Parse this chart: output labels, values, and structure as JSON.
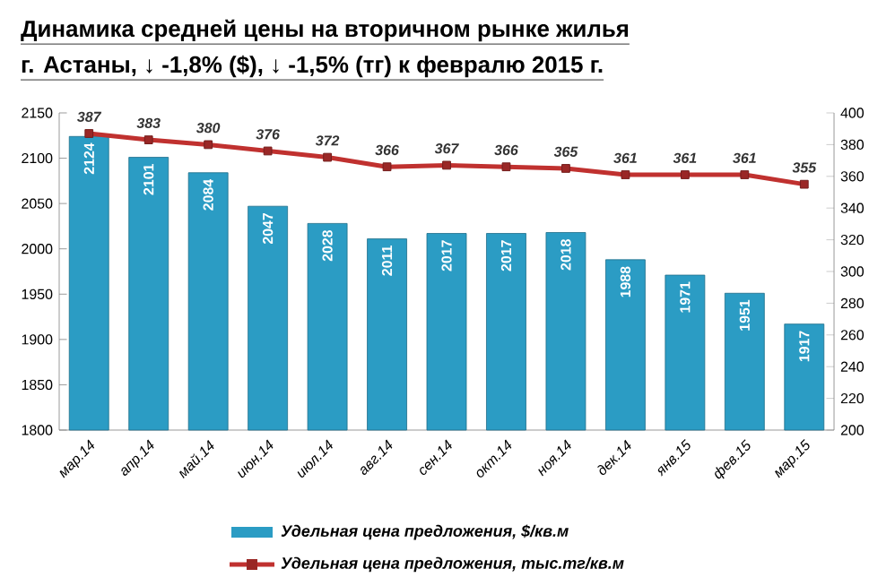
{
  "chart_data": {
    "type": "bar",
    "title": "Динамика средней  цены на вторичном рынке жилья",
    "subtitle": "г. Астаны, ↓ -1,8% ($), ↓ -1,5% (тг) к февралю 2015 г.",
    "categories": [
      "мар.14",
      "апр.14",
      "май.14",
      "июн.14",
      "июл.14",
      "авг.14",
      "сен.14",
      "окт.14",
      "ноя.14",
      "дек.14",
      "янв.15",
      "фев.15",
      "мар.15"
    ],
    "series": [
      {
        "name": "Удельная цена предложения, $/кв.м",
        "color": "#2b9cc4",
        "values": [
          2124,
          2101,
          2084,
          2047,
          2028,
          2011,
          2017,
          2017,
          2018,
          1988,
          1971,
          1951,
          1917
        ]
      },
      {
        "name": "Удельная цена предложения, тыс.тг/кв.м",
        "type": "line",
        "axis": "y2",
        "color": "#c0312f",
        "marker": "square",
        "values": [
          387,
          383,
          380,
          376,
          372,
          366,
          367,
          366,
          365,
          361,
          361,
          361,
          355
        ]
      }
    ],
    "ylim": [
      1800,
      2150
    ],
    "yticks": [
      1800,
      1850,
      1900,
      1950,
      2000,
      2050,
      2100,
      2150
    ],
    "y2lim": [
      200,
      400
    ],
    "y2ticks": [
      200,
      220,
      240,
      260,
      280,
      300,
      320,
      340,
      360,
      380,
      400
    ],
    "data_labels": true,
    "legend": "bottom",
    "grid": false
  }
}
